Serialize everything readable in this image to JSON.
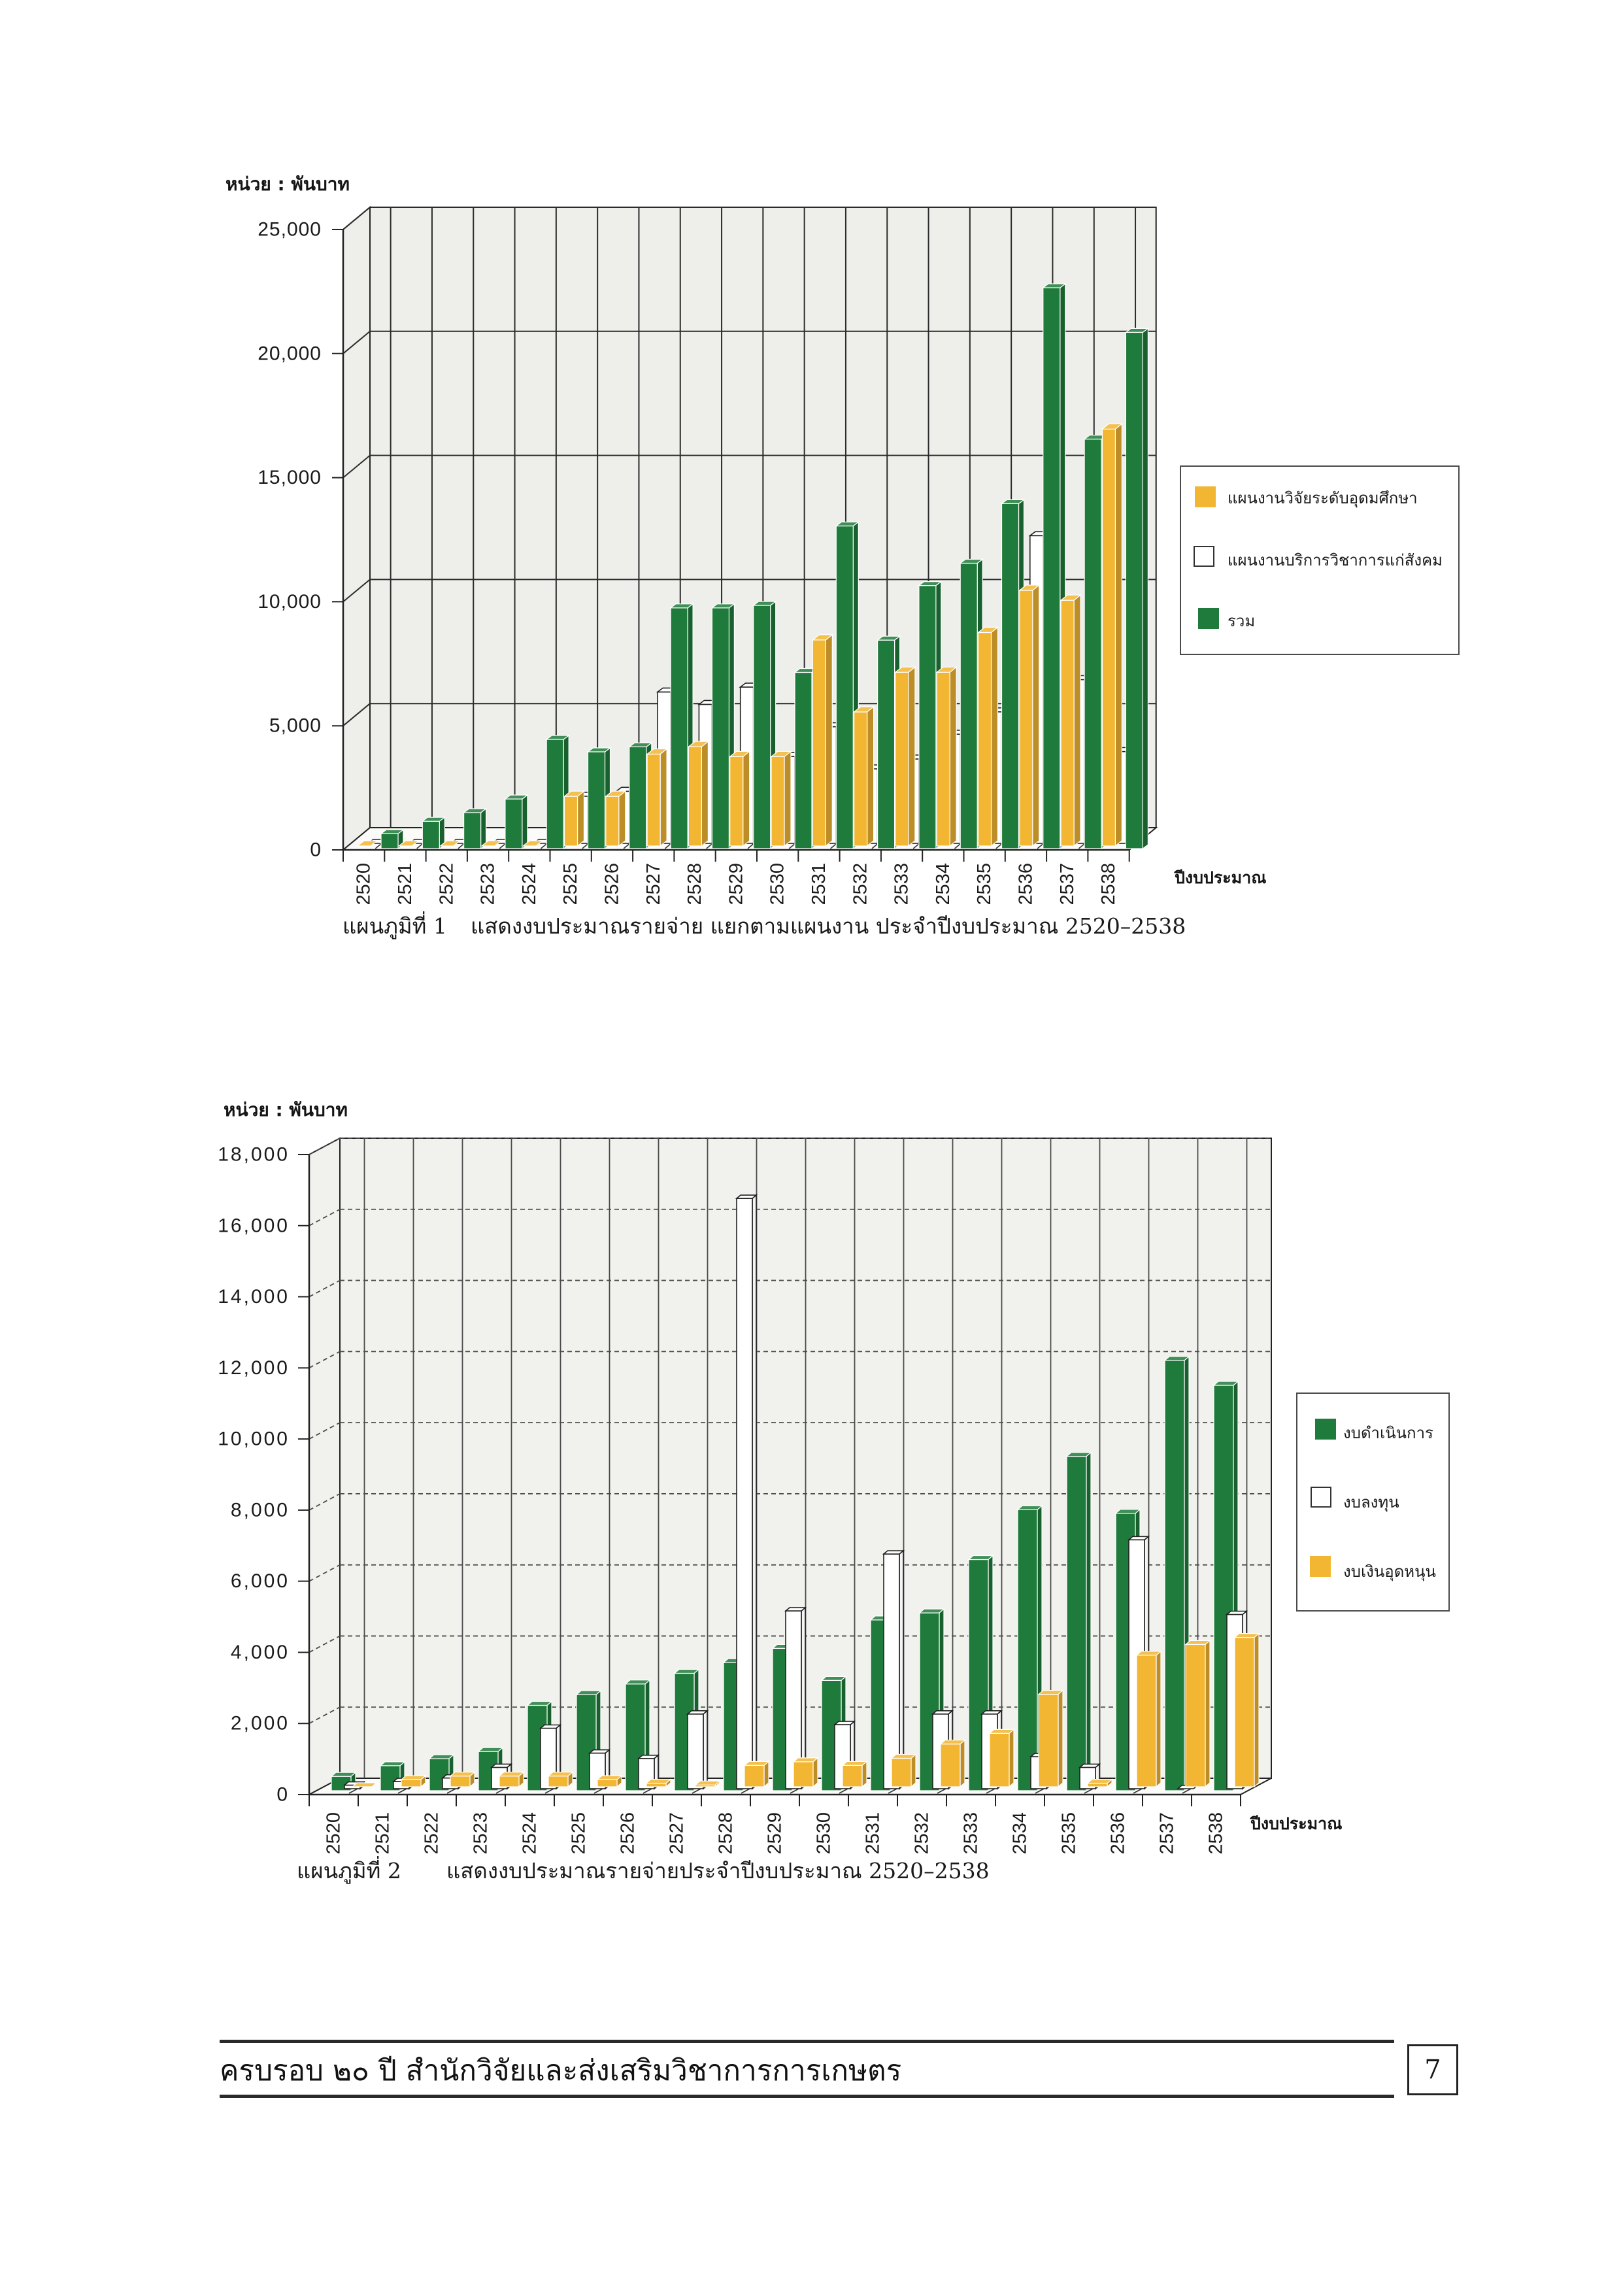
{
  "chart_data": [
    {
      "type": "bar",
      "subtype": "3d-clustered",
      "title_number": "แผนภูมิที่ 1",
      "title": "แสดงงบประมาณรายจ่าย แยกตามแผนงาน ประจำปีงบประมาณ 2520–2538",
      "unit_label": "หน่วย : พันบาท",
      "xlabel": "ปีงบประมาณ",
      "categories": [
        "2520",
        "2521",
        "2522",
        "2523",
        "2524",
        "2525",
        "2526",
        "2527",
        "2528",
        "2529",
        "2530",
        "2531",
        "2532",
        "2533",
        "2534",
        "2535",
        "2536",
        "2537",
        "2538"
      ],
      "ylim": [
        0,
        25000
      ],
      "yticks": [
        0,
        5000,
        10000,
        15000,
        20000,
        25000
      ],
      "ytick_labels": [
        "0",
        "5,000",
        "10,000",
        "15,000",
        "20,000",
        "25,000"
      ],
      "grid": true,
      "legend_position": "right",
      "series": [
        {
          "name": "แผนงานวิจัยระดับอุดมศึกษา",
          "color": "#f2b632",
          "values": [
            0,
            0,
            0,
            0,
            0,
            2000,
            2000,
            3700,
            4000,
            3600,
            3600,
            8300,
            5400,
            7000,
            7000,
            8600,
            10300,
            9900,
            16800
          ]
        },
        {
          "name": "แผนงานบริการวิชาการแก่สังคม",
          "color": "#ffffff",
          "values": [
            0,
            0,
            0,
            0,
            0,
            1900,
            2100,
            6100,
            5600,
            6300,
            3500,
            4700,
            3000,
            3400,
            4400,
            5300,
            12400,
            6600,
            3700
          ]
        },
        {
          "name": "รวม",
          "color": "#1f7b3b",
          "values": [
            600,
            1100,
            1450,
            2000,
            4400,
            3900,
            4100,
            9700,
            9700,
            9800,
            7100,
            13000,
            8400,
            10600,
            11500,
            13900,
            22600,
            16500,
            20800
          ]
        }
      ]
    },
    {
      "type": "bar",
      "subtype": "3d-clustered",
      "title_number": "แผนภูมิที่ 2",
      "title": "แสดงงบประมาณรายจ่ายประจำปีงบประมาณ 2520–2538",
      "unit_label": "หน่วย : พันบาท",
      "xlabel": "ปีงบประมาณ",
      "categories": [
        "2520",
        "2521",
        "2522",
        "2523",
        "2524",
        "2525",
        "2526",
        "2527",
        "2528",
        "2529",
        "2530",
        "2531",
        "2532",
        "2533",
        "2534",
        "2535",
        "2536",
        "2537",
        "2538"
      ],
      "ylim": [
        0,
        18000
      ],
      "yticks": [
        0,
        2000,
        4000,
        6000,
        8000,
        10000,
        12000,
        14000,
        16000,
        18000
      ],
      "ytick_labels": [
        "0",
        "2,000",
        "4,000",
        "6,000",
        "8,000",
        "10,000",
        "12,000",
        "14,000",
        "16,000",
        "18,000"
      ],
      "grid": true,
      "legend_position": "right",
      "series": [
        {
          "name": "งบดำเนินการ",
          "color": "#1f7b3b",
          "values": [
            400,
            700,
            900,
            1100,
            2400,
            2700,
            3000,
            3300,
            3600,
            4000,
            3100,
            4800,
            5000,
            6500,
            7900,
            9400,
            7800,
            12100,
            11400
          ]
        },
        {
          "name": "งบลงทุน",
          "color": "#ffffff",
          "values": [
            100,
            200,
            300,
            600,
            1700,
            1000,
            850,
            2100,
            16600,
            5000,
            1800,
            6600,
            2100,
            2100,
            900,
            600,
            7000,
            0,
            4900
          ]
        },
        {
          "name": "งบเงินอุดหนุน",
          "color": "#f2b632",
          "values": [
            0,
            200,
            300,
            300,
            300,
            200,
            100,
            50,
            600,
            700,
            600,
            800,
            1200,
            1500,
            2600,
            100,
            3700,
            4000,
            4200
          ]
        }
      ]
    }
  ],
  "footer": {
    "title": "ครบรอบ ๒๐ ปี สำนักวิจัยและส่งเสริมวิชาการการเกษตร",
    "page_number": "7"
  }
}
